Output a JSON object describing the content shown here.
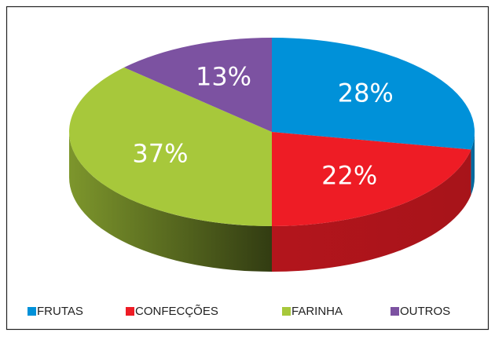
{
  "chart_data": {
    "type": "pie",
    "three_d": true,
    "categories": [
      "FRUTAS",
      "CONFECÇÕES",
      "FARINHA",
      "OUTROS"
    ],
    "values": [
      28,
      22,
      37,
      13
    ],
    "value_labels": [
      "28%",
      "22%",
      "37%",
      "13%"
    ],
    "colors": [
      "#0091d9",
      "#ee1c25",
      "#a7c83b",
      "#7c52a1"
    ],
    "legend": "bottom"
  }
}
